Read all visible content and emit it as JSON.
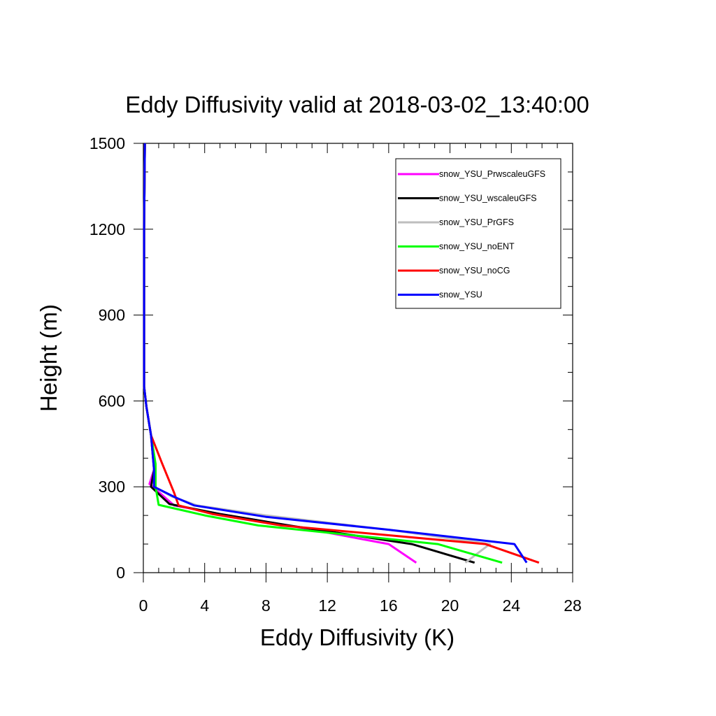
{
  "chart_data": {
    "type": "line",
    "title": "Eddy Diffusivity valid at 2018-03-02_13:40:00",
    "xlabel": "Eddy Diffusivity (K)",
    "ylabel": "Height (m)",
    "xlim": [
      0,
      28
    ],
    "ylim": [
      0,
      1500
    ],
    "xticks": [
      0,
      4,
      8,
      12,
      16,
      20,
      24,
      28
    ],
    "yticks": [
      0,
      300,
      600,
      900,
      1200,
      1500
    ],
    "legend_position": "top-right",
    "series": [
      {
        "name": "snow_YSU_PrwscaleuGFS",
        "color": "#ff00ff",
        "points": [
          [
            17.8,
            35
          ],
          [
            16.0,
            100
          ],
          [
            9.5,
            165
          ],
          [
            5.0,
            205
          ],
          [
            2.0,
            235
          ],
          [
            0.4,
            310
          ],
          [
            0.7,
            360
          ],
          [
            0.5,
            480
          ],
          [
            0.2,
            580
          ],
          [
            0.05,
            650
          ],
          [
            0.05,
            900
          ],
          [
            0.05,
            1200
          ],
          [
            0.1,
            1500
          ]
        ]
      },
      {
        "name": "snow_YSU_wscaleuGFS",
        "color": "#000000",
        "points": [
          [
            21.6,
            35
          ],
          [
            17.5,
            100
          ],
          [
            9.5,
            165
          ],
          [
            5.0,
            205
          ],
          [
            1.7,
            240
          ],
          [
            0.5,
            300
          ],
          [
            0.7,
            360
          ],
          [
            0.5,
            480
          ],
          [
            0.2,
            580
          ],
          [
            0.05,
            650
          ],
          [
            0.05,
            900
          ],
          [
            0.05,
            1200
          ],
          [
            0.1,
            1500
          ]
        ]
      },
      {
        "name": "snow_YSU_PrGFS",
        "color": "#bebebe",
        "points": [
          [
            21.0,
            35
          ],
          [
            22.6,
            100
          ],
          [
            16.0,
            150
          ],
          [
            8.0,
            200
          ],
          [
            3.5,
            235
          ],
          [
            1.9,
            265
          ],
          [
            0.7,
            300
          ],
          [
            0.7,
            360
          ],
          [
            0.5,
            480
          ],
          [
            0.2,
            580
          ],
          [
            0.05,
            650
          ],
          [
            0.05,
            900
          ],
          [
            0.05,
            1200
          ],
          [
            0.1,
            1500
          ]
        ]
      },
      {
        "name": "snow_YSU_noENT",
        "color": "#00ff00",
        "points": [
          [
            23.4,
            35
          ],
          [
            19.2,
            100
          ],
          [
            7.5,
            165
          ],
          [
            4.0,
            200
          ],
          [
            1.0,
            237
          ],
          [
            0.8,
            300
          ],
          [
            0.8,
            380
          ],
          [
            0.5,
            480
          ],
          [
            0.2,
            580
          ],
          [
            0.05,
            650
          ],
          [
            0.05,
            900
          ],
          [
            0.05,
            1200
          ],
          [
            0.1,
            1500
          ]
        ]
      },
      {
        "name": "snow_YSU_noCG",
        "color": "#ff0000",
        "points": [
          [
            25.8,
            35
          ],
          [
            22.3,
            100
          ],
          [
            9.0,
            165
          ],
          [
            4.5,
            205
          ],
          [
            2.3,
            235
          ],
          [
            2.0,
            280
          ],
          [
            1.2,
            385
          ],
          [
            0.5,
            480
          ],
          [
            0.2,
            580
          ],
          [
            0.05,
            650
          ],
          [
            0.05,
            900
          ],
          [
            0.05,
            1200
          ],
          [
            0.1,
            1500
          ]
        ]
      },
      {
        "name": "snow_YSU",
        "color": "#0000ff",
        "points": [
          [
            25.0,
            35
          ],
          [
            24.2,
            100
          ],
          [
            16.0,
            150
          ],
          [
            8.0,
            195
          ],
          [
            3.3,
            235
          ],
          [
            2.0,
            265
          ],
          [
            0.7,
            300
          ],
          [
            0.7,
            360
          ],
          [
            0.5,
            480
          ],
          [
            0.2,
            580
          ],
          [
            0.05,
            650
          ],
          [
            0.05,
            900
          ],
          [
            0.05,
            1200
          ],
          [
            0.1,
            1500
          ]
        ]
      }
    ]
  }
}
